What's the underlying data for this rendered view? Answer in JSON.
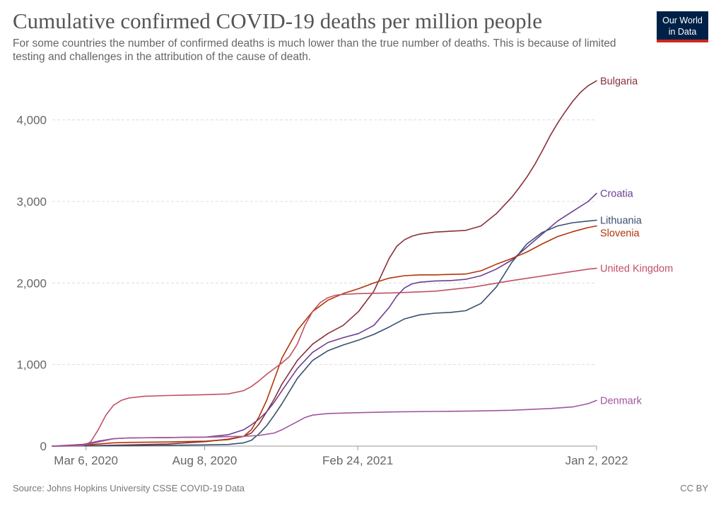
{
  "header": {
    "title": "Cumulative confirmed COVID-19 deaths per million people",
    "subtitle": "For some countries the number of confirmed deaths is much lower than the true number of deaths. This is because of limited testing and challenges in the attribution of the cause of death.",
    "logo_line1": "Our World",
    "logo_line2": "in Data"
  },
  "footer": {
    "source": "Source: Johns Hopkins University CSSE COVID-19 Data",
    "license": "CC BY"
  },
  "chart_data": {
    "type": "line",
    "title": "Cumulative confirmed COVID-19 deaths per million people",
    "xlabel": "",
    "ylabel": "",
    "x_start": "Jan 22, 2020",
    "x_end": "Jan 2, 2022",
    "xlim_days": [
      0,
      711
    ],
    "x_ticks": [
      {
        "day": 44,
        "label": "Mar 6, 2020"
      },
      {
        "day": 199,
        "label": "Aug 8, 2020"
      },
      {
        "day": 399,
        "label": "Feb 24, 2021"
      },
      {
        "day": 711,
        "label": "Jan 2, 2022"
      }
    ],
    "ylim": [
      0,
      4500
    ],
    "y_ticks": [
      0,
      1000,
      2000,
      3000,
      4000
    ],
    "y_tick_labels": [
      "0",
      "1,000",
      "2,000",
      "3,000",
      "4,000"
    ],
    "grid": "horizontal-dashed",
    "series": [
      {
        "name": "Bulgaria",
        "color": "#883039",
        "x": [
          0,
          50,
          100,
          150,
          200,
          230,
          250,
          260,
          270,
          280,
          290,
          300,
          320,
          340,
          360,
          380,
          400,
          420,
          430,
          440,
          450,
          460,
          470,
          480,
          500,
          520,
          540,
          560,
          580,
          600,
          610,
          620,
          630,
          640,
          650,
          660,
          670,
          680,
          690,
          700,
          711
        ],
        "values": [
          0,
          5,
          15,
          25,
          55,
          85,
          120,
          160,
          270,
          420,
          580,
          760,
          1050,
          1250,
          1380,
          1480,
          1650,
          1900,
          2100,
          2300,
          2450,
          2530,
          2575,
          2600,
          2625,
          2635,
          2645,
          2700,
          2850,
          3050,
          3170,
          3300,
          3450,
          3620,
          3800,
          3960,
          4100,
          4230,
          4340,
          4420,
          4480
        ]
      },
      {
        "name": "Croatia",
        "color": "#6d3e91",
        "x": [
          0,
          40,
          60,
          80,
          100,
          150,
          200,
          230,
          250,
          260,
          270,
          280,
          290,
          300,
          320,
          340,
          360,
          380,
          400,
          420,
          440,
          450,
          460,
          470,
          480,
          500,
          520,
          540,
          560,
          580,
          600,
          620,
          640,
          660,
          680,
          700,
          711
        ],
        "values": [
          0,
          20,
          60,
          90,
          100,
          105,
          110,
          140,
          200,
          260,
          330,
          420,
          540,
          680,
          950,
          1150,
          1270,
          1330,
          1380,
          1480,
          1700,
          1840,
          1940,
          1990,
          2010,
          2025,
          2030,
          2045,
          2090,
          2170,
          2280,
          2440,
          2600,
          2760,
          2880,
          3000,
          3100
        ]
      },
      {
        "name": "Lithuania",
        "color": "#38506e",
        "x": [
          0,
          100,
          150,
          200,
          230,
          250,
          260,
          270,
          280,
          290,
          300,
          320,
          340,
          360,
          380,
          400,
          420,
          440,
          460,
          480,
          500,
          520,
          540,
          560,
          580,
          600,
          620,
          640,
          660,
          680,
          700,
          711
        ],
        "values": [
          0,
          5,
          10,
          15,
          20,
          40,
          70,
          150,
          250,
          380,
          520,
          830,
          1050,
          1170,
          1240,
          1300,
          1370,
          1460,
          1560,
          1610,
          1630,
          1640,
          1660,
          1750,
          1950,
          2250,
          2480,
          2620,
          2700,
          2740,
          2760,
          2770
        ]
      },
      {
        "name": "Slovenia",
        "color": "#b13507",
        "x": [
          0,
          40,
          60,
          80,
          100,
          150,
          200,
          230,
          250,
          260,
          270,
          280,
          290,
          300,
          320,
          340,
          360,
          380,
          400,
          420,
          440,
          460,
          480,
          500,
          520,
          540,
          560,
          580,
          600,
          620,
          640,
          660,
          680,
          700,
          711
        ],
        "values": [
          0,
          10,
          25,
          40,
          45,
          50,
          60,
          80,
          120,
          200,
          360,
          560,
          820,
          1080,
          1420,
          1650,
          1790,
          1870,
          1930,
          2000,
          2060,
          2090,
          2100,
          2100,
          2105,
          2110,
          2150,
          2230,
          2300,
          2380,
          2480,
          2570,
          2630,
          2680,
          2700
        ]
      },
      {
        "name": "United Kingdom",
        "color": "#c15065",
        "x": [
          0,
          40,
          50,
          60,
          70,
          80,
          90,
          100,
          120,
          150,
          200,
          230,
          250,
          260,
          270,
          280,
          290,
          300,
          310,
          320,
          330,
          340,
          350,
          360,
          370,
          380,
          400,
          450,
          500,
          550,
          600,
          650,
          700,
          711
        ],
        "values": [
          0,
          5,
          50,
          200,
          380,
          500,
          560,
          590,
          610,
          620,
          630,
          640,
          680,
          730,
          800,
          880,
          950,
          1020,
          1100,
          1250,
          1480,
          1650,
          1760,
          1820,
          1850,
          1860,
          1870,
          1880,
          1900,
          1950,
          2030,
          2100,
          2170,
          2180
        ]
      },
      {
        "name": "Denmark",
        "color": "#a2559c",
        "x": [
          0,
          40,
          60,
          80,
          100,
          150,
          200,
          250,
          270,
          290,
          300,
          310,
          320,
          330,
          340,
          360,
          400,
          450,
          500,
          550,
          600,
          650,
          680,
          700,
          711
        ],
        "values": [
          0,
          10,
          50,
          90,
          100,
          105,
          110,
          120,
          130,
          160,
          200,
          250,
          300,
          350,
          380,
          400,
          410,
          420,
          425,
          430,
          440,
          460,
          480,
          520,
          560
        ]
      }
    ]
  }
}
